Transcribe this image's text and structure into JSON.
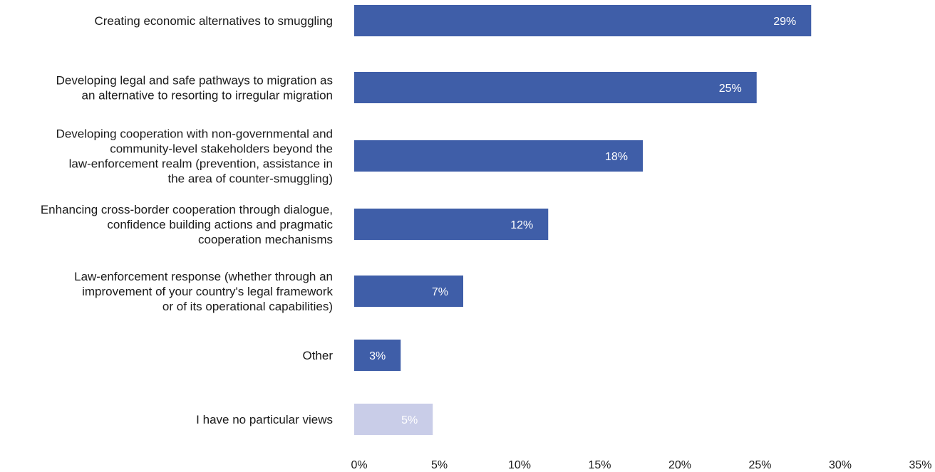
{
  "chart_data": {
    "type": "bar",
    "orientation": "horizontal",
    "categories": [
      [
        "Creating economic alternatives to smuggling"
      ],
      [
        "Developing legal and safe pathways to migration as",
        "an alternative to resorting to irregular migration"
      ],
      [
        "Developing cooperation with non-governmental and",
        "community-level stakeholders beyond the",
        "law-enforcement realm (prevention, assistance in",
        "the area of counter-smuggling)"
      ],
      [
        "Enhancing cross-border cooperation through dialogue,",
        "confidence building actions and pragmatic",
        "cooperation mechanisms"
      ],
      [
        "Law-enforcement response (whether through an",
        "improvement of your country's legal framework",
        "or of its operational capabilities)"
      ],
      [
        "Other"
      ],
      [
        "I have no particular views"
      ]
    ],
    "values": [
      28.5,
      25.1,
      18.0,
      12.1,
      6.8,
      2.9,
      4.9
    ],
    "data_labels": [
      "29%",
      "25%",
      "18%",
      "12%",
      "7%",
      "3%",
      "5%"
    ],
    "bar_colors": [
      "#3f5ea8",
      "#3f5ea8",
      "#3f5ea8",
      "#3f5ea8",
      "#3f5ea8",
      "#3f5ea8",
      "#c9cde8"
    ],
    "xlim": [
      0,
      35
    ],
    "x_ticks": [
      0,
      5,
      10,
      15,
      20,
      25,
      30,
      35
    ],
    "x_tick_labels": [
      "0%",
      "5%",
      "10%",
      "15%",
      "20%",
      "25%",
      "30%",
      "35%"
    ],
    "title": "",
    "xlabel": "",
    "ylabel": "",
    "grid": false,
    "legend": "none"
  }
}
